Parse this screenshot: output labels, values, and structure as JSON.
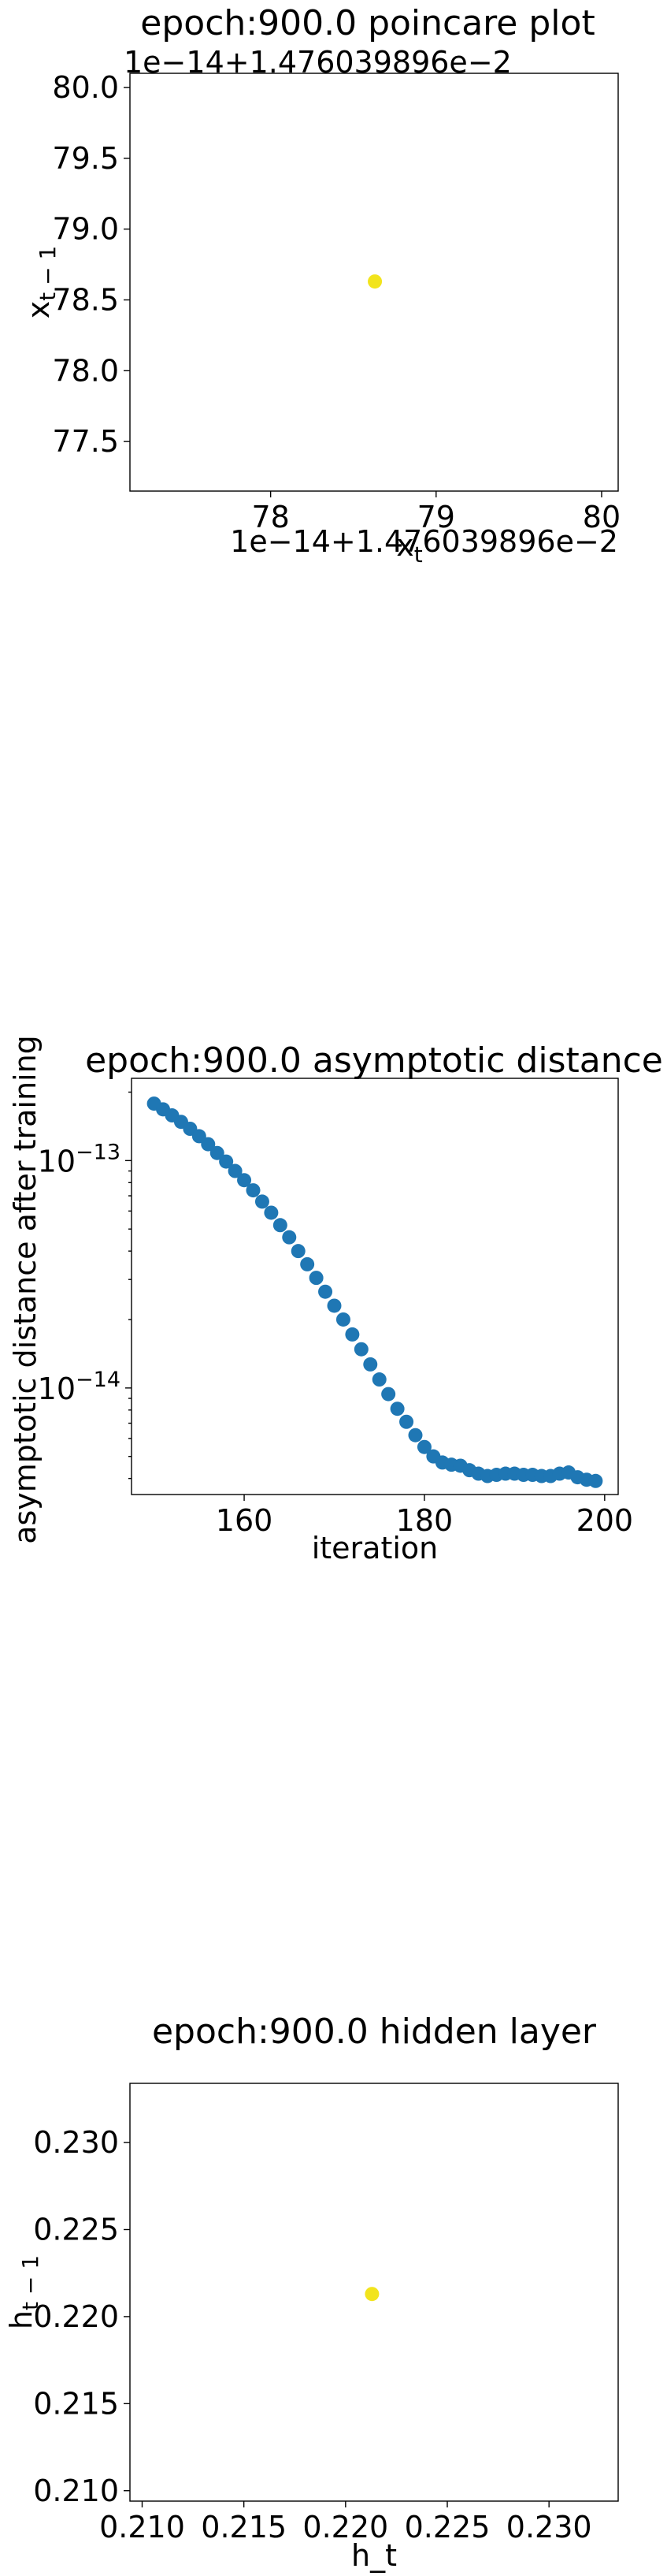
{
  "chart_data": [
    {
      "type": "scatter",
      "title": "epoch:900.0 poincare plot",
      "xlabel": "x_t",
      "ylabel": "x_{t-1}",
      "offset_text_x": "1e−14+1.476039896e−2",
      "offset_text_y": "1e−14+1.476039896e−2",
      "xlim": [
        77.15,
        80.1
      ],
      "ylim": [
        77.15,
        80.1
      ],
      "xticks": [
        78,
        79,
        80
      ],
      "xtick_labels": [
        "78",
        "79",
        "80"
      ],
      "yticks": [
        77.5,
        78.0,
        78.5,
        79.0,
        79.5,
        80.0
      ],
      "ytick_labels": [
        "77.5",
        "78.0",
        "78.5",
        "79.0",
        "79.5",
        "80.0"
      ],
      "points": [
        {
          "x": 78.63,
          "y": 78.63
        }
      ],
      "point_color": "#f2e41c",
      "grid": false
    },
    {
      "type": "scatter",
      "title": "epoch:900.0 asymptotic distance",
      "xlabel": "iteration",
      "ylabel": "asymptotic distance after training",
      "y_scale": "log",
      "xlim": [
        147.5,
        201.5
      ],
      "ylim": [
        3.4e-15,
        2.3e-13
      ],
      "xticks": [
        160,
        180,
        200
      ],
      "xtick_labels": [
        "160",
        "180",
        "200"
      ],
      "yticks": [
        1e-14,
        1e-13
      ],
      "ytick_labels": [
        {
          "base": "10",
          "exp": "−14"
        },
        {
          "base": "10",
          "exp": "−13"
        }
      ],
      "x": [
        150,
        151,
        152,
        153,
        154,
        155,
        156,
        157,
        158,
        159,
        160,
        161,
        162,
        163,
        164,
        165,
        166,
        167,
        168,
        169,
        170,
        171,
        172,
        173,
        174,
        175,
        176,
        177,
        178,
        179,
        180,
        181,
        182,
        183,
        184,
        185,
        186,
        187,
        188,
        189,
        190,
        191,
        192,
        193,
        194,
        195,
        196,
        197,
        198,
        199
      ],
      "y": [
        1.78e-13,
        1.68e-13,
        1.58e-13,
        1.48e-13,
        1.38e-13,
        1.28e-13,
        1.18e-13,
        1.08e-13,
        9.9e-14,
        9e-14,
        8.2e-14,
        7.4e-14,
        6.6e-14,
        5.9e-14,
        5.2e-14,
        4.6e-14,
        4e-14,
        3.5e-14,
        3.05e-14,
        2.65e-14,
        2.3e-14,
        2e-14,
        1.72e-14,
        1.48e-14,
        1.27e-14,
        1.09e-14,
        9.4e-15,
        8.1e-15,
        7.1e-15,
        6.2e-15,
        5.5e-15,
        5e-15,
        4.7e-15,
        4.6e-15,
        4.55e-15,
        4.35e-15,
        4.2e-15,
        4.1e-15,
        4.15e-15,
        4.2e-15,
        4.2e-15,
        4.15e-15,
        4.15e-15,
        4.1e-15,
        4.1e-15,
        4.2e-15,
        4.25e-15,
        4.05e-15,
        3.95e-15,
        3.9e-15
      ],
      "point_color": "#1f77b4",
      "grid": false
    },
    {
      "type": "scatter",
      "title": "epoch:900.0 hidden layer",
      "xlabel": "h_t",
      "ylabel": "h_{t-1}",
      "xlim": [
        0.2094,
        0.2334
      ],
      "ylim": [
        0.2094,
        0.2334
      ],
      "xticks": [
        0.21,
        0.215,
        0.22,
        0.225,
        0.23
      ],
      "xtick_labels": [
        "0.210",
        "0.215",
        "0.220",
        "0.225",
        "0.230"
      ],
      "yticks": [
        0.21,
        0.215,
        0.22,
        0.225,
        0.23
      ],
      "ytick_labels": [
        "0.210",
        "0.215",
        "0.220",
        "0.225",
        "0.230"
      ],
      "points": [
        {
          "x": 0.2213,
          "y": 0.2213
        }
      ],
      "point_color": "#f2e41c",
      "grid": false
    }
  ]
}
